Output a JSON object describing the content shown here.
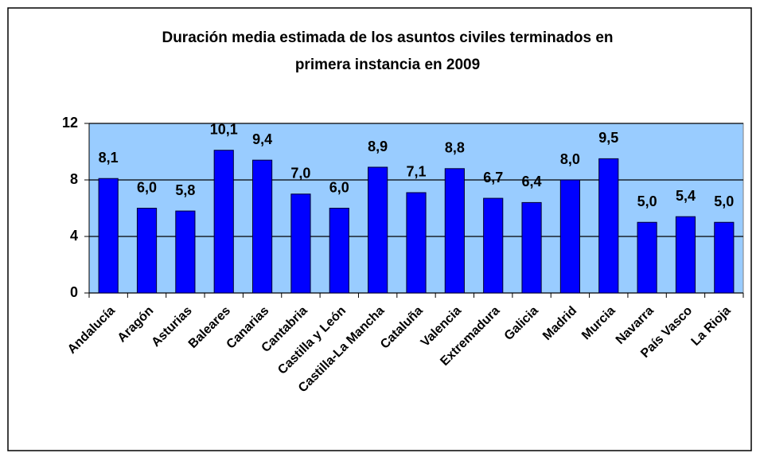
{
  "chart_data": {
    "type": "bar",
    "title": [
      "Duración media estimada de los asuntos civiles terminados en",
      "primera instancia en 2009"
    ],
    "categories": [
      "Andalucía",
      "Aragón",
      "Asturias",
      "Baleares",
      "Canarias",
      "Cantabria",
      "Castilla y León",
      "Castilla-La Mancha",
      "Cataluña",
      "Valencia",
      "Extremadura",
      "Galicia",
      "Madrid",
      "Murcia",
      "Navarra",
      "País Vasco",
      "La Rioja"
    ],
    "values": [
      8.1,
      6.0,
      5.8,
      10.1,
      9.4,
      7.0,
      6.0,
      8.9,
      7.1,
      8.8,
      6.7,
      6.4,
      8.0,
      9.5,
      5.0,
      5.4,
      5.0
    ],
    "value_labels": [
      "8,1",
      "6,0",
      "5,8",
      "10,1",
      "9,4",
      "7,0",
      "6,0",
      "8,9",
      "7,1",
      "8,8",
      "6,7",
      "6,4",
      "8,0",
      "9,5",
      "5,0",
      "5,4",
      "5,0"
    ],
    "color": "#0000ff",
    "ylim": [
      0,
      12
    ],
    "yticks": [
      0,
      4,
      8,
      12
    ],
    "grid": true
  }
}
